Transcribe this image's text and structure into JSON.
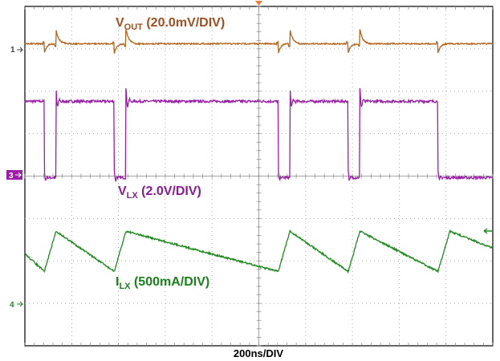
{
  "chart_data": {
    "type": "line",
    "title": "",
    "xlabel": "200ns/DIV",
    "x_unit_per_div": "200ns",
    "grid": true,
    "series": [
      {
        "name": "VOUT (20.0mV/DIV)",
        "label_main": "V",
        "label_sub": "OUT",
        "label_rest": " (20.0mV/DIV)",
        "channel_marker": "1",
        "color": "#b5651d",
        "scale": "20.0mV/DIV",
        "ripple_mv_pp": 10,
        "waveform": "ripple with spikes at switching edges"
      },
      {
        "name": "VLX (2.0V/DIV)",
        "label_main": "V",
        "label_sub": "LX",
        "label_rest": " (2.0V/DIV)",
        "channel_marker": "3",
        "color": "#9b1ea8",
        "scale": "2.0V/DIV",
        "high_v": 3.6,
        "low_v": 0,
        "waveform": "square switching node"
      },
      {
        "name": "ILX (500mA/DIV)",
        "label_main": "I",
        "label_sub": "LX",
        "label_rest": " (500mA/DIV)",
        "channel_marker": "4",
        "color": "#1e8a1e",
        "scale": "500mA/DIV",
        "ripple_ma_pp": 500,
        "waveform": "triangular inductor current"
      }
    ],
    "switching_edges_ns": [
      83,
      133,
      382,
      432,
      1083,
      1133,
      1382,
      1432,
      1766
    ],
    "period_ns": 1000,
    "ilx_peaks_ns": [
      133,
      432,
      1133,
      1432
    ],
    "ilx_valleys_ns": [
      83,
      382,
      1083,
      1382
    ]
  }
}
